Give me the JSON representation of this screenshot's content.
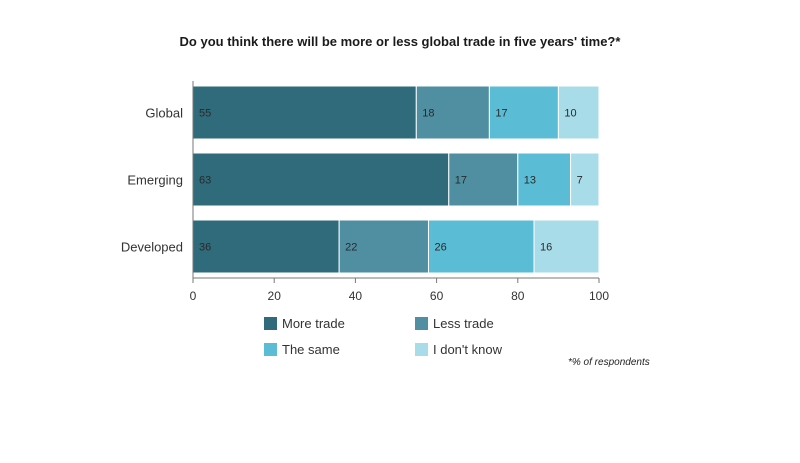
{
  "chart_data": {
    "type": "bar",
    "orientation": "horizontal",
    "stacked": true,
    "title": "Do you think there will be more or less global trade in five years' time?*",
    "categories": [
      "Global",
      "Emerging",
      "Developed"
    ],
    "series": [
      {
        "name": "More trade",
        "color": "#2f6b7a",
        "values": [
          55,
          63,
          36
        ]
      },
      {
        "name": "Less trade",
        "color": "#4f8fa1",
        "values": [
          18,
          17,
          22
        ]
      },
      {
        "name": "The same",
        "color": "#5bbcd6",
        "values": [
          17,
          13,
          26
        ]
      },
      {
        "name": "I don't know",
        "color": "#a9dce9",
        "values": [
          10,
          7,
          16
        ]
      }
    ],
    "xlim": [
      0,
      100
    ],
    "xticks": [
      0,
      20,
      40,
      60,
      80,
      100
    ],
    "legend_position": "bottom",
    "grid": false,
    "footnote": "*% of respondents"
  }
}
